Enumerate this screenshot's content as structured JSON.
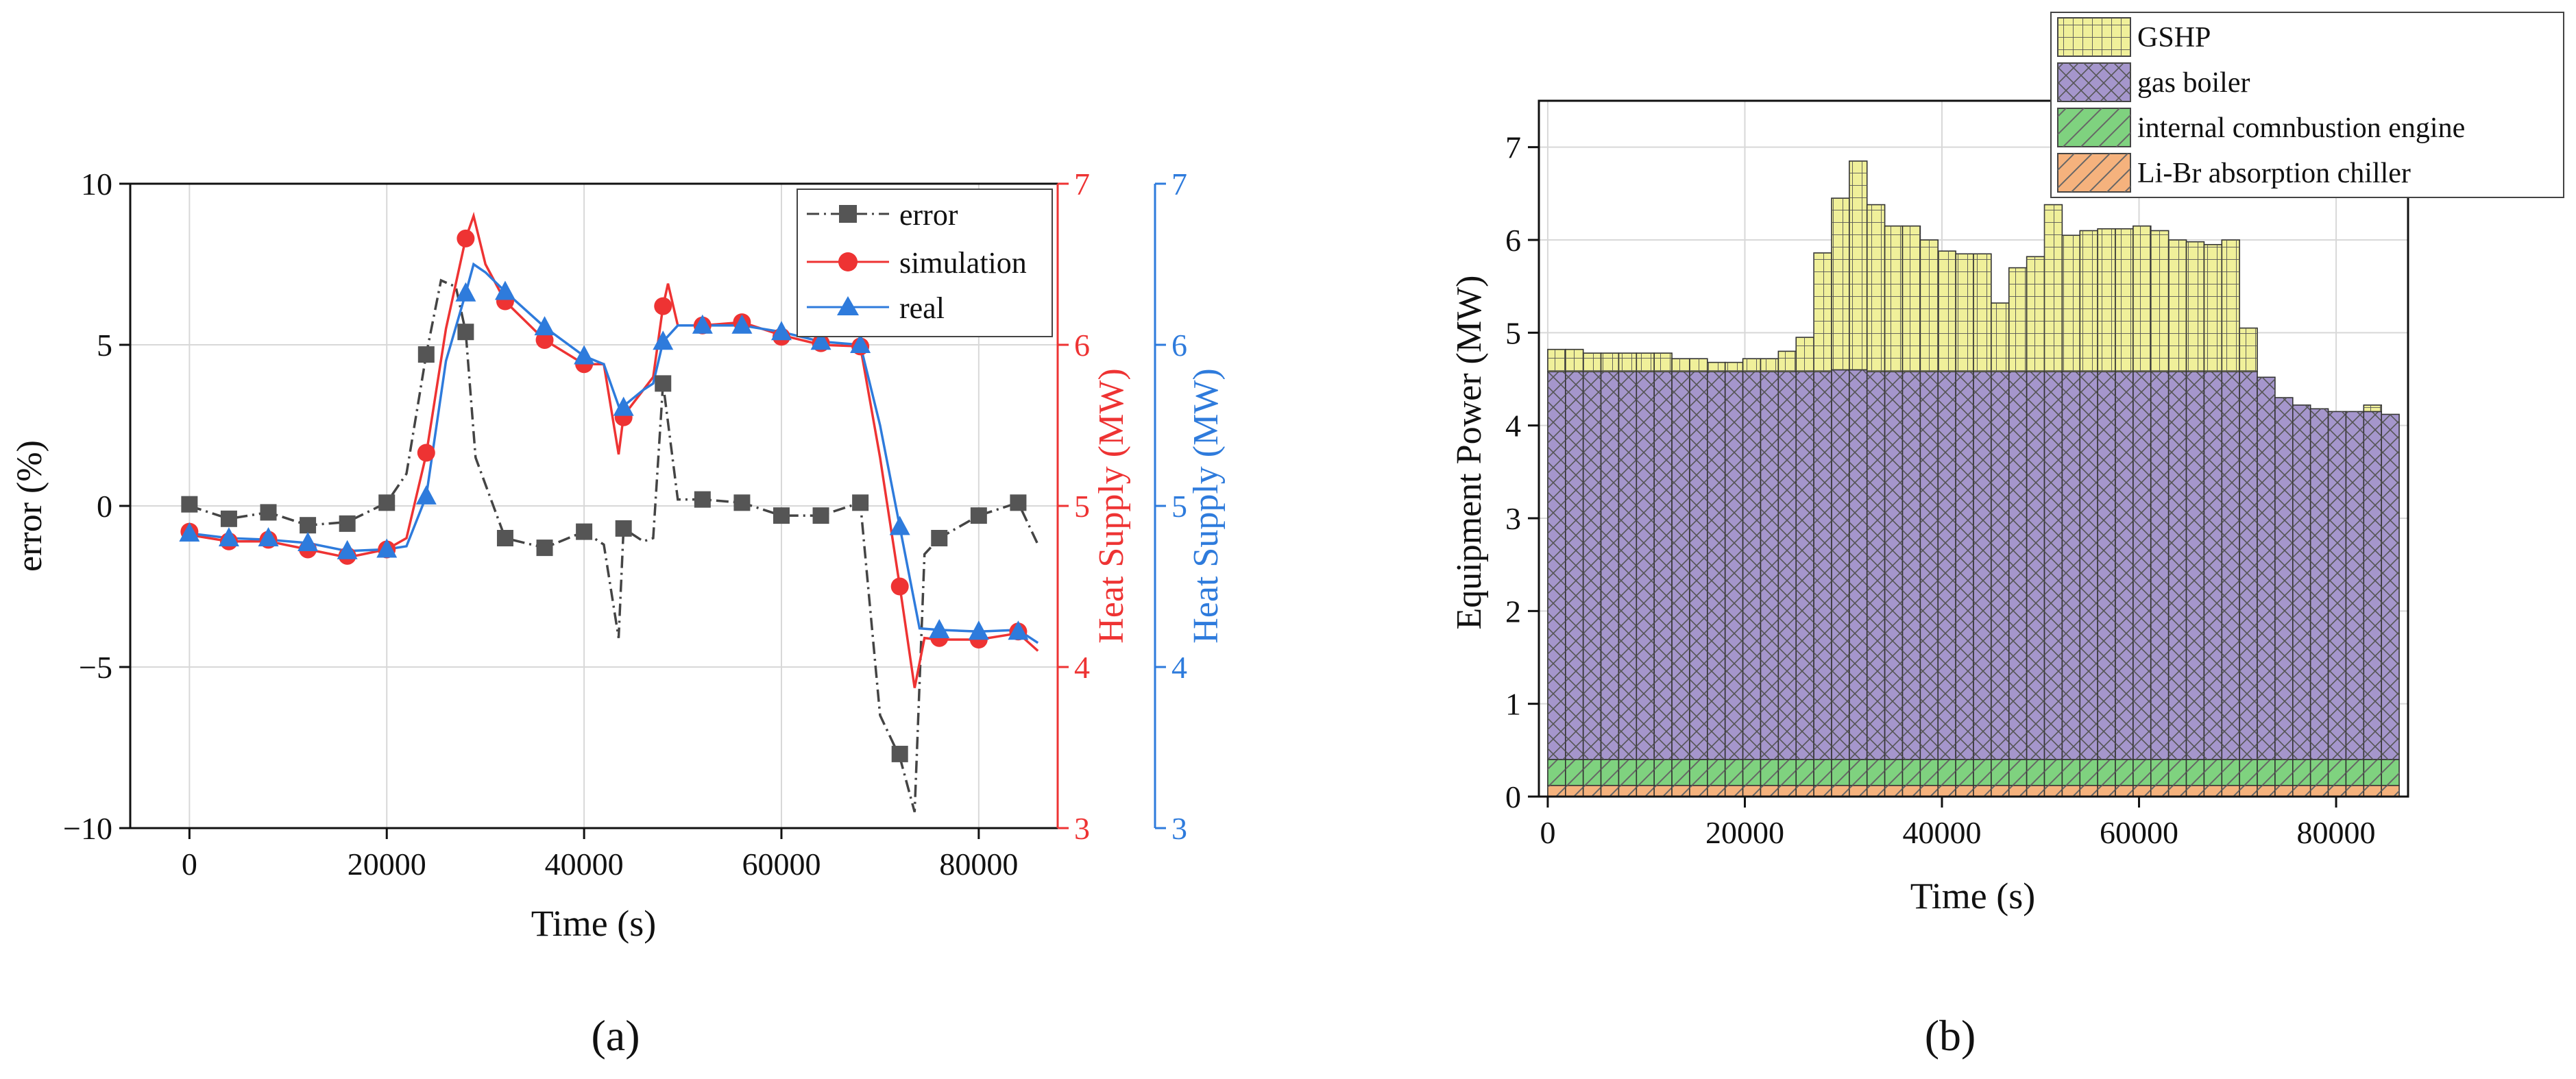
{
  "chart_data": [
    {
      "panel_label": "(a)",
      "type": "line",
      "title": "",
      "xlabel": "Time (s)",
      "xlim": [
        -6000,
        88000
      ],
      "xticks": [
        0,
        20000,
        40000,
        60000,
        80000
      ],
      "xtick_labels": [
        "0",
        "20000",
        "40000",
        "60000",
        "80000"
      ],
      "grid": true,
      "legend_position": "top-right",
      "axes": {
        "left": {
          "label": "error (%)",
          "ylim": [
            -10,
            10
          ],
          "ticks": [
            -10,
            -5,
            0,
            5,
            10
          ],
          "tick_labels": [
            "−10",
            "−5",
            "0",
            "5",
            "10"
          ],
          "color": "#222222"
        },
        "right1": {
          "label": "Heat Supply (MW)",
          "ylim": [
            3,
            7
          ],
          "ticks": [
            3,
            4,
            5,
            6,
            7
          ],
          "tick_labels": [
            "3",
            "4",
            "5",
            "6",
            "7"
          ],
          "color": "#ee3333"
        },
        "right2": {
          "label": "Heat Supply (MW)",
          "ylim": [
            3,
            7
          ],
          "ticks": [
            3,
            4,
            5,
            6,
            7
          ],
          "tick_labels": [
            "3",
            "4",
            "5",
            "6",
            "7"
          ],
          "color": "#2e7bdc"
        }
      },
      "series": [
        {
          "name": "error",
          "axis": "left",
          "color": "#444444",
          "marker": "square",
          "line": "dashdot",
          "line_x": [
            0,
            4000,
            8000,
            12000,
            16000,
            20000,
            22000,
            24000,
            25500,
            27000,
            28000,
            29000,
            32000,
            36000,
            40000,
            42000,
            43500,
            44000,
            46000,
            47000,
            48000,
            49500,
            52000,
            56000,
            60000,
            64000,
            68000,
            70000,
            72000,
            73500,
            74500,
            76000,
            80000,
            84000,
            86000
          ],
          "line_y": [
            0,
            -0.4,
            -0.2,
            -0.6,
            -0.5,
            0.1,
            1.0,
            4.7,
            7.0,
            6.8,
            5.4,
            1.5,
            -1.0,
            -1.3,
            -0.8,
            -1.2,
            -4.1,
            -0.7,
            -1.1,
            -1.0,
            3.8,
            0.2,
            0.2,
            0.1,
            -0.3,
            -0.3,
            0.1,
            -6.5,
            -7.8,
            -9.5,
            -1.5,
            -1.0,
            -0.3,
            0.1,
            -1.2
          ],
          "marker_x": [
            0,
            4000,
            8000,
            12000,
            16000,
            20000,
            24000,
            28000,
            32000,
            36000,
            40000,
            44000,
            48000,
            52000,
            56000,
            60000,
            64000,
            68000,
            72000,
            76000,
            80000,
            84000
          ],
          "marker_y": [
            0.05,
            -0.4,
            -0.2,
            -0.6,
            -0.55,
            0.1,
            4.7,
            5.4,
            -1.0,
            -1.3,
            -0.8,
            -0.7,
            3.8,
            0.2,
            0.1,
            -0.3,
            -0.3,
            0.1,
            -7.7,
            -1.0,
            -0.3,
            0.1
          ]
        },
        {
          "name": "simulation",
          "axis": "right1",
          "color": "#ee3333",
          "marker": "circle",
          "line": "solid",
          "line_x": [
            0,
            4000,
            8000,
            12000,
            16000,
            20000,
            22000,
            24000,
            26000,
            28000,
            28800,
            30000,
            32000,
            36000,
            40000,
            42000,
            43500,
            44000,
            46000,
            47000,
            48000,
            48500,
            49500,
            52000,
            56000,
            60000,
            64000,
            68000,
            70000,
            72000,
            73500,
            74500,
            76000,
            80000,
            84000,
            86000
          ],
          "line_y": [
            4.82,
            4.78,
            4.78,
            4.73,
            4.68,
            4.73,
            4.8,
            5.32,
            6.1,
            6.66,
            6.8,
            6.5,
            6.27,
            6.03,
            5.88,
            5.88,
            5.32,
            5.56,
            5.72,
            5.8,
            6.24,
            6.38,
            6.12,
            6.12,
            6.14,
            6.06,
            6.0,
            5.99,
            5.3,
            4.5,
            3.87,
            4.18,
            4.17,
            4.17,
            4.21,
            4.1
          ],
          "marker_x": [
            0,
            4000,
            8000,
            12000,
            16000,
            20000,
            24000,
            28000,
            32000,
            36000,
            40000,
            44000,
            48000,
            52000,
            56000,
            60000,
            64000,
            68000,
            72000,
            76000,
            80000,
            84000
          ],
          "marker_y": [
            4.84,
            4.78,
            4.79,
            4.73,
            4.69,
            4.73,
            5.33,
            6.66,
            6.27,
            6.03,
            5.88,
            5.55,
            6.24,
            6.12,
            6.14,
            6.05,
            6.01,
            5.99,
            4.5,
            4.18,
            4.17,
            4.22
          ]
        },
        {
          "name": "real",
          "axis": "right2",
          "color": "#2e7bdc",
          "marker": "triangle",
          "line": "solid",
          "line_x": [
            0,
            4000,
            8000,
            12000,
            16000,
            20000,
            22000,
            24000,
            26000,
            28000,
            28800,
            30000,
            32000,
            36000,
            40000,
            42000,
            43500,
            44000,
            46000,
            47000,
            48000,
            49500,
            52000,
            56000,
            60000,
            64000,
            68000,
            70000,
            72000,
            74000,
            76000,
            80000,
            84000,
            86000
          ],
          "line_y": [
            4.83,
            4.8,
            4.79,
            4.77,
            4.72,
            4.73,
            4.75,
            5.06,
            5.9,
            6.32,
            6.5,
            6.45,
            6.33,
            6.11,
            5.93,
            5.88,
            5.62,
            5.62,
            5.72,
            5.76,
            6.02,
            6.12,
            6.12,
            6.12,
            6.08,
            6.02,
            6.0,
            5.5,
            4.87,
            4.24,
            4.23,
            4.22,
            4.23,
            4.15
          ],
          "marker_x": [
            0,
            4000,
            8000,
            12000,
            16000,
            20000,
            24000,
            28000,
            32000,
            36000,
            40000,
            44000,
            48000,
            52000,
            56000,
            60000,
            64000,
            68000,
            72000,
            76000,
            80000,
            84000
          ],
          "marker_y": [
            4.83,
            4.8,
            4.8,
            4.77,
            4.72,
            4.73,
            5.06,
            6.32,
            6.33,
            6.11,
            5.93,
            5.61,
            6.02,
            6.12,
            6.12,
            6.08,
            6.02,
            6.0,
            4.87,
            4.23,
            4.22,
            4.22
          ]
        }
      ]
    },
    {
      "panel_label": "(b)",
      "type": "bar",
      "stacked": true,
      "title": "",
      "xlabel": "Time (s)",
      "ylabel": "Equipment Power (MW)",
      "xlim": [
        -900,
        87300
      ],
      "ylim": [
        0,
        7.5
      ],
      "xticks": [
        0,
        20000,
        40000,
        60000,
        80000
      ],
      "xtick_labels": [
        "0",
        "20000",
        "40000",
        "60000",
        "80000"
      ],
      "yticks": [
        0,
        1,
        2,
        3,
        4,
        5,
        6,
        7
      ],
      "ytick_labels": [
        "0",
        "1",
        "2",
        "3",
        "4",
        "5",
        "6",
        "7"
      ],
      "grid": true,
      "legend_position": "top-right",
      "bar_width_s": 1800,
      "series": [
        {
          "name": "Li-Br absorption chiller",
          "color": "#f5b27d",
          "hatch": "diagonal",
          "value": 0.12
        },
        {
          "name": "internal comnbustion engine",
          "color": "#7fd27f",
          "hatch": "diagonal",
          "value": 0.28
        },
        {
          "name": "gas boiler",
          "color": "#a596cc",
          "hatch": "cross",
          "top_total": [
            4.58,
            4.58,
            4.58,
            4.58,
            4.58,
            4.58,
            4.58,
            4.58,
            4.58,
            4.58,
            4.58,
            4.58,
            4.58,
            4.58,
            4.58,
            4.58,
            4.6,
            4.6,
            4.58,
            4.58,
            4.58,
            4.58,
            4.58,
            4.58,
            4.58,
            4.58,
            4.58,
            4.58,
            4.58,
            4.58,
            4.58,
            4.58,
            4.58,
            4.58,
            4.58,
            4.58,
            4.58,
            4.58,
            4.58,
            4.58,
            4.52,
            4.3,
            4.22,
            4.18,
            4.15,
            4.15,
            4.15,
            4.12
          ]
        },
        {
          "name": "GSHP",
          "color": "#f0f09a",
          "hatch": "grid",
          "top_total": [
            4.82,
            4.82,
            4.78,
            4.78,
            4.78,
            4.78,
            4.78,
            4.72,
            4.72,
            4.68,
            4.68,
            4.72,
            4.72,
            4.8,
            4.95,
            5.86,
            6.45,
            6.85,
            6.38,
            6.15,
            6.15,
            6.0,
            5.88,
            5.85,
            5.85,
            5.32,
            5.7,
            5.82,
            6.38,
            6.05,
            6.1,
            6.12,
            6.12,
            6.15,
            6.1,
            6.0,
            5.98,
            5.95,
            6.0,
            5.05,
            4.52,
            4.3,
            4.22,
            4.18,
            4.15,
            4.15,
            4.22,
            4.12
          ]
        }
      ]
    }
  ]
}
